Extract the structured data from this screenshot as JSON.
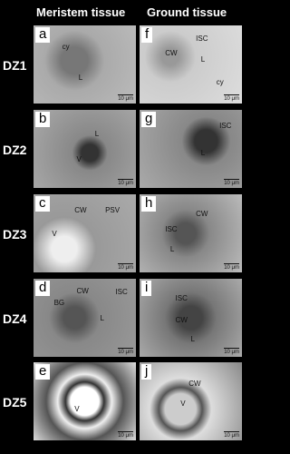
{
  "header": {
    "columns": [
      "Meristem tissue",
      "Ground tissue"
    ]
  },
  "rows": [
    {
      "label": "DZ1",
      "panels": [
        {
          "letter": "a",
          "notes": [
            "cy",
            "L"
          ],
          "scale": "10 μm"
        },
        {
          "letter": "f",
          "notes": [
            "ISC",
            "CW",
            "L",
            "cy"
          ],
          "scale": "10 μm"
        }
      ]
    },
    {
      "label": "DZ2",
      "panels": [
        {
          "letter": "b",
          "notes": [
            "L",
            "V"
          ],
          "scale": "10 μm"
        },
        {
          "letter": "g",
          "notes": [
            "ISC",
            "L"
          ],
          "scale": "10 μm"
        }
      ]
    },
    {
      "label": "DZ3",
      "panels": [
        {
          "letter": "c",
          "notes": [
            "CW",
            "PSV",
            "V"
          ],
          "scale": "10 μm"
        },
        {
          "letter": "h",
          "notes": [
            "CW",
            "ISC",
            "L"
          ],
          "scale": "10 μm"
        }
      ]
    },
    {
      "label": "DZ4",
      "panels": [
        {
          "letter": "d",
          "notes": [
            "CW",
            "ISC",
            "BG",
            "L"
          ],
          "scale": "10 μm"
        },
        {
          "letter": "i",
          "notes": [
            "ISC",
            "CW",
            "L"
          ],
          "scale": "10 μm"
        }
      ]
    },
    {
      "label": "DZ5",
      "panels": [
        {
          "letter": "e",
          "notes": [
            "V"
          ],
          "scale": "10 μm"
        },
        {
          "letter": "j",
          "notes": [
            "CW",
            "V"
          ],
          "scale": "10 μm"
        }
      ]
    }
  ]
}
